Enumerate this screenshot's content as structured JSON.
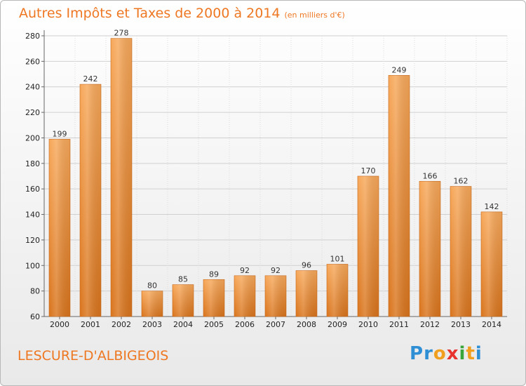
{
  "title": "Autres Impôts et Taxes de 2000 à 2014",
  "unit_note": "(en milliers d'€)",
  "city": "LESCURE-D'ALBIGEOIS",
  "logo": {
    "letters": [
      "P",
      "r",
      "o",
      "x",
      "i",
      "t",
      "i"
    ],
    "colors": [
      "#2f8fd5",
      "#2f8fd5",
      "#f0a01e",
      "#e8322d",
      "#3aa53a",
      "#f0a01e",
      "#2f8fd5"
    ]
  },
  "chart_data": {
    "type": "bar",
    "categories": [
      "2000",
      "2001",
      "2002",
      "2003",
      "2004",
      "2005",
      "2006",
      "2007",
      "2008",
      "2009",
      "2010",
      "2011",
      "2012",
      "2013",
      "2014"
    ],
    "values": [
      199,
      242,
      278,
      80,
      85,
      89,
      92,
      92,
      96,
      101,
      170,
      249,
      166,
      162,
      142
    ],
    "ylim": [
      60,
      280
    ],
    "yticks": [
      60,
      80,
      100,
      120,
      140,
      160,
      180,
      200,
      220,
      240,
      260,
      280
    ],
    "grid": true,
    "bar_color": "#ee8a2f"
  }
}
